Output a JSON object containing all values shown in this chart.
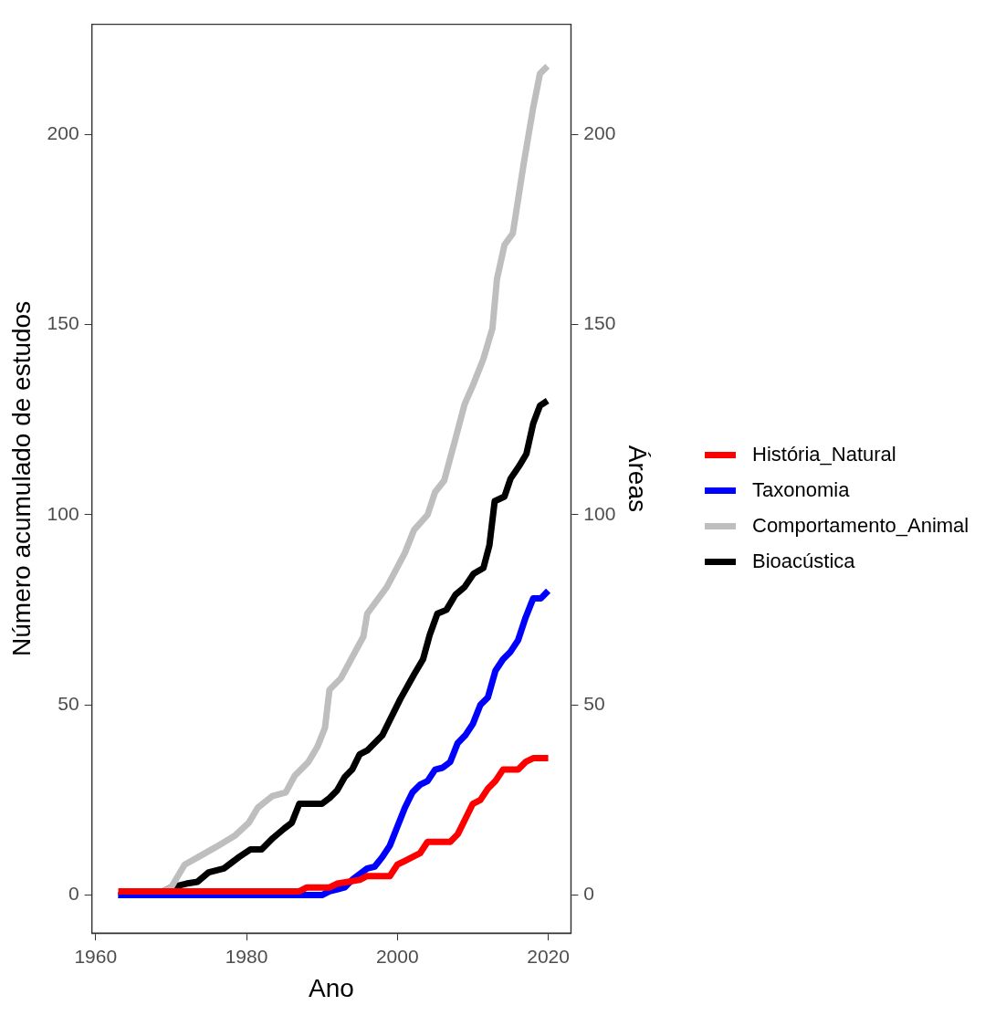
{
  "chart_data": {
    "type": "line",
    "xlabel": "Ano",
    "ylabel": "Número acumulado de estudos",
    "y2label": "Áreas",
    "xlim": [
      1959.5,
      2023
    ],
    "xticks": [
      1960,
      1980,
      2000,
      2020
    ],
    "ylim": [
      -10,
      229
    ],
    "yticks": [
      0,
      50,
      100,
      150,
      200
    ],
    "y2lim": [
      -10,
      229
    ],
    "y2ticks": [
      0,
      50,
      100,
      150,
      200
    ],
    "grid": false,
    "legend": "right",
    "marker": "none",
    "line_style": "solid",
    "series": [
      {
        "name": "História_Natural",
        "color": "#ff0000",
        "x": [
          1963,
          1987,
          1988,
          1991,
          1992,
          1995,
          1996,
          1999,
          2000,
          2001,
          2002,
          2003,
          2004,
          2007,
          2008,
          2009,
          2010,
          2011,
          2012,
          2013,
          2014,
          2016,
          2017,
          2018,
          2020
        ],
        "values": [
          1,
          1,
          2,
          2,
          3,
          4,
          5,
          5,
          8,
          9,
          10,
          11,
          14,
          14,
          16,
          20,
          24,
          25,
          28,
          30,
          33,
          33,
          35,
          36,
          36
        ]
      },
      {
        "name": "Taxonomia",
        "color": "#0000ff",
        "x": [
          1963,
          1990,
          1991,
          1992,
          1993,
          1994,
          1995,
          1996,
          1997,
          1998,
          1999,
          2000,
          2001,
          2002,
          2003,
          2004,
          2005,
          2006,
          2007,
          2008,
          2009,
          2010,
          2011,
          2012,
          2013,
          2014,
          2015,
          2016,
          2017,
          2018,
          2019,
          2020
        ],
        "values": [
          0,
          0,
          1,
          1.5,
          2,
          4,
          5.5,
          7,
          7.5,
          10,
          13,
          18,
          23,
          27,
          29,
          30,
          33,
          33.5,
          35,
          40,
          42,
          45,
          50,
          52,
          59,
          62,
          64,
          67,
          73,
          78,
          78,
          80
        ]
      },
      {
        "name": "Comportamento_Animal",
        "color": "#bebebe",
        "x": [
          1963,
          1967,
          1969,
          1970,
          1971.8,
          1973.6,
          1976,
          1978.5,
          1980.3,
          1981.5,
          1983.4,
          1985.2,
          1986.4,
          1988.2,
          1989.4,
          1990.4,
          1991,
          1992.5,
          1995.5,
          1996,
          1998.6,
          2001,
          2002.2,
          2004,
          2005,
          2006.2,
          2007.7,
          2008.9,
          2010,
          2011.4,
          2012.6,
          2013.2,
          2014.2,
          2015.3,
          2016.8,
          2018,
          2018.9,
          2019.9
        ],
        "values": [
          0,
          0,
          1,
          2,
          8,
          10,
          12.7,
          15.7,
          19,
          23,
          26,
          27,
          31.4,
          35,
          39,
          44,
          54,
          57,
          68,
          74,
          81,
          90,
          96,
          100,
          106,
          109,
          120,
          129,
          134,
          141,
          149,
          162,
          171,
          174,
          193,
          207,
          216,
          218
        ]
      },
      {
        "name": "Bioacústica",
        "color": "#000000",
        "x": [
          1963,
          1968,
          1970,
          1972,
          1973.5,
          1975,
          1977,
          1979,
          1980.5,
          1982,
          1983.5,
          1985,
          1986,
          1987,
          1990,
          1991,
          1992,
          1993,
          1994,
          1995,
          1996,
          1998,
          1999,
          2000.4,
          2002.2,
          2003.4,
          2004.3,
          2005.3,
          2006.5,
          2007.7,
          2008.9,
          2010.1,
          2011.4,
          2012.2,
          2012.9,
          2014.2,
          2015,
          2016.2,
          2017.1,
          2018,
          2018.9,
          2019.9
        ],
        "values": [
          0,
          0,
          2,
          3,
          3.5,
          6,
          7,
          10,
          12,
          12,
          15,
          17.5,
          19,
          24,
          24,
          25.5,
          27.5,
          31,
          33,
          37,
          38,
          42,
          46,
          51.6,
          58,
          62,
          68.5,
          74,
          75,
          79,
          81,
          84.5,
          86,
          92,
          103.6,
          104.8,
          109.5,
          113,
          116,
          124,
          128.7,
          130
        ]
      }
    ]
  }
}
